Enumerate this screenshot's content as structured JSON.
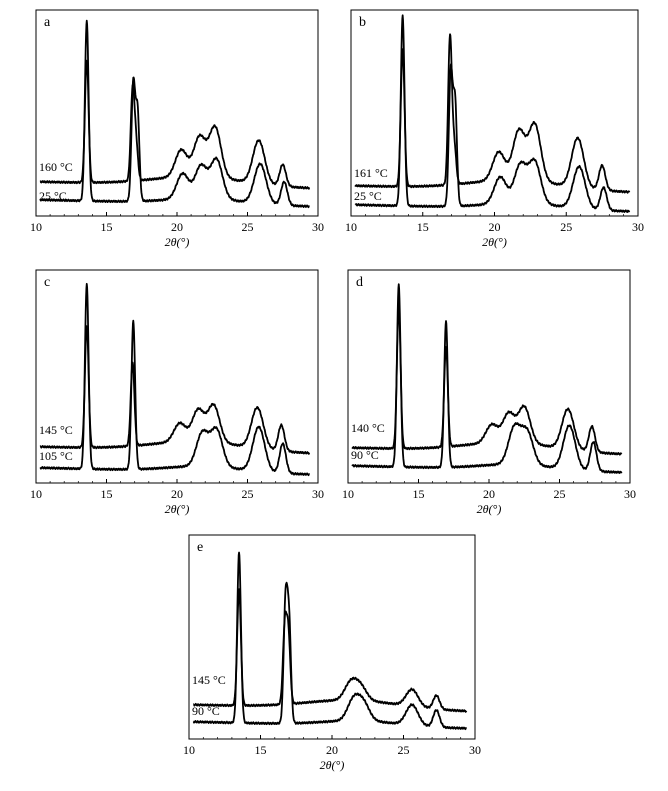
{
  "chart_data": [
    {
      "type": "line",
      "panel_letter": "a",
      "xlabel": "2θ(°)",
      "xlim": [
        10,
        30
      ],
      "x_ticks": [
        10,
        15,
        20,
        25,
        30
      ],
      "y_axis": "unlabeled intensity",
      "series": [
        {
          "name": "160 °C",
          "peaks": [
            [
              13.6,
              0.68
            ],
            [
              16.85,
              0.5
            ],
            [
              17.1,
              0.2
            ],
            [
              20.3,
              0.15
            ],
            [
              21.6,
              0.22
            ],
            [
              22.7,
              0.28
            ],
            [
              25.8,
              0.24
            ],
            [
              27.5,
              0.12
            ]
          ]
        },
        {
          "name": "25 °C",
          "peaks": [
            [
              13.6,
              1.0
            ],
            [
              16.9,
              0.65
            ],
            [
              17.2,
              0.5
            ],
            [
              20.4,
              0.14
            ],
            [
              21.7,
              0.18
            ],
            [
              22.8,
              0.22
            ],
            [
              25.9,
              0.22
            ],
            [
              27.6,
              0.13
            ]
          ]
        }
      ]
    },
    {
      "type": "line",
      "panel_letter": "b",
      "xlabel": "2θ(°)",
      "xlim": [
        10,
        30
      ],
      "x_ticks": [
        10,
        15,
        20,
        25,
        30
      ],
      "y_axis": "unlabeled intensity",
      "series": [
        {
          "name": "161 °C",
          "peaks": [
            [
              13.6,
              0.72
            ],
            [
              16.9,
              0.78
            ],
            [
              17.2,
              0.2
            ],
            [
              20.3,
              0.15
            ],
            [
              21.7,
              0.26
            ],
            [
              22.8,
              0.3
            ],
            [
              25.8,
              0.26
            ],
            [
              27.5,
              0.13
            ]
          ]
        },
        {
          "name": "25 °C",
          "peaks": [
            [
              13.6,
              1.0
            ],
            [
              16.95,
              0.7
            ],
            [
              17.25,
              0.55
            ],
            [
              20.4,
              0.14
            ],
            [
              21.8,
              0.2
            ],
            [
              22.8,
              0.22
            ],
            [
              25.9,
              0.22
            ],
            [
              27.6,
              0.12
            ]
          ]
        }
      ]
    },
    {
      "type": "line",
      "panel_letter": "c",
      "xlabel": "2θ(°)",
      "xlim": [
        10,
        30
      ],
      "x_ticks": [
        10,
        15,
        20,
        25,
        30
      ],
      "y_axis": "unlabeled intensity",
      "series": [
        {
          "name": "145 °C",
          "peaks": [
            [
              13.6,
              0.66
            ],
            [
              16.85,
              0.45
            ],
            [
              20.2,
              0.1
            ],
            [
              21.5,
              0.17
            ],
            [
              22.6,
              0.2
            ],
            [
              25.7,
              0.22
            ],
            [
              27.4,
              0.14
            ]
          ]
        },
        {
          "name": "105 °C",
          "peaks": [
            [
              13.6,
              1.0
            ],
            [
              16.9,
              0.8
            ],
            [
              21.8,
              0.18
            ],
            [
              22.8,
              0.2
            ],
            [
              25.8,
              0.24
            ],
            [
              27.5,
              0.16
            ]
          ]
        }
      ]
    },
    {
      "type": "line",
      "panel_letter": "d",
      "xlabel": "2θ(°)",
      "xlim": [
        10,
        30
      ],
      "x_ticks": [
        10,
        15,
        20,
        25,
        30
      ],
      "y_axis": "unlabeled intensity",
      "series": [
        {
          "name": "140 °C",
          "peaks": [
            [
              13.6,
              0.78
            ],
            [
              16.95,
              0.55
            ],
            [
              20.2,
              0.1
            ],
            [
              21.4,
              0.16
            ],
            [
              22.5,
              0.2
            ],
            [
              25.6,
              0.22
            ],
            [
              27.3,
              0.14
            ]
          ]
        },
        {
          "name": "90 °C",
          "peaks": [
            [
              13.6,
              1.0
            ],
            [
              16.95,
              0.8
            ],
            [
              21.8,
              0.2
            ],
            [
              22.7,
              0.18
            ],
            [
              25.7,
              0.24
            ],
            [
              27.4,
              0.16
            ]
          ]
        }
      ]
    },
    {
      "type": "line",
      "panel_letter": "e",
      "xlabel": "2θ(°)",
      "xlim": [
        10,
        30
      ],
      "x_ticks": [
        10,
        15,
        20,
        25,
        30
      ],
      "y_axis": "unlabeled intensity",
      "series": [
        {
          "name": "145 °C",
          "peaks": [
            [
              13.5,
              0.68
            ],
            [
              16.7,
              0.45
            ],
            [
              16.95,
              0.4
            ],
            [
              21.3,
              0.1
            ],
            [
              22.0,
              0.08
            ],
            [
              25.6,
              0.1
            ],
            [
              27.3,
              0.08
            ]
          ]
        },
        {
          "name": "90 °C",
          "peaks": [
            [
              13.5,
              1.0
            ],
            [
              16.75,
              0.7
            ],
            [
              17.0,
              0.58
            ],
            [
              21.5,
              0.12
            ],
            [
              22.2,
              0.1
            ],
            [
              25.6,
              0.12
            ],
            [
              27.3,
              0.1
            ]
          ]
        }
      ]
    }
  ]
}
